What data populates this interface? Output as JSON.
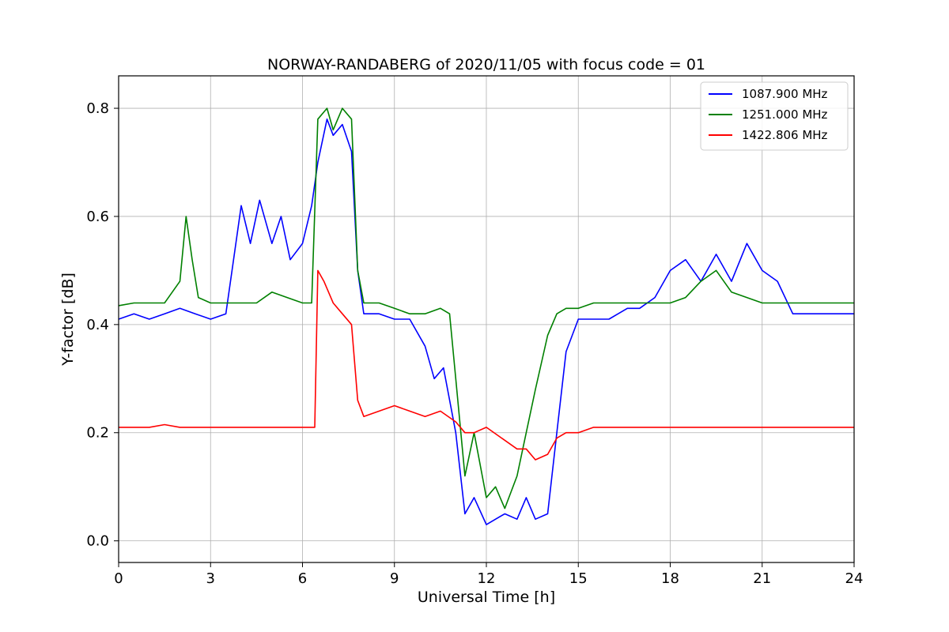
{
  "chart_data": {
    "type": "line",
    "title": "NORWAY-RANDABERG of 2020/11/05 with focus code = 01",
    "xlabel": "Universal Time [h]",
    "ylabel": "Y-factor [dB]",
    "xlim": [
      0,
      24
    ],
    "ylim": [
      -0.04,
      0.86
    ],
    "xticks": [
      0,
      3,
      6,
      9,
      12,
      15,
      18,
      21,
      24
    ],
    "xtick_labels": [
      "0",
      "3",
      "6",
      "9",
      "12",
      "15",
      "18",
      "21",
      "24"
    ],
    "yticks": [
      0.0,
      0.2,
      0.4,
      0.6,
      0.8
    ],
    "ytick_labels": [
      "0.0",
      "0.2",
      "0.4",
      "0.6",
      "0.8"
    ],
    "grid": true,
    "legend_position": "top-right",
    "series": [
      {
        "name": "1087.900 MHz",
        "color": "#0000ff",
        "x": [
          0,
          0.5,
          1.0,
          1.5,
          2.0,
          2.5,
          3.0,
          3.5,
          3.7,
          4.0,
          4.3,
          4.6,
          5.0,
          5.3,
          5.6,
          6.0,
          6.3,
          6.5,
          6.8,
          7.0,
          7.3,
          7.6,
          7.8,
          8.0,
          8.5,
          9.0,
          9.5,
          10.0,
          10.3,
          10.6,
          11.0,
          11.3,
          11.6,
          12.0,
          12.3,
          12.6,
          13.0,
          13.3,
          13.6,
          14.0,
          14.3,
          14.6,
          15.0,
          15.5,
          16.0,
          16.3,
          16.6,
          17.0,
          17.5,
          18.0,
          18.5,
          19.0,
          19.5,
          20.0,
          20.5,
          21.0,
          21.5,
          22.0,
          22.5,
          23.0,
          23.5,
          24.0
        ],
        "y": [
          0.41,
          0.42,
          0.41,
          0.42,
          0.43,
          0.42,
          0.41,
          0.42,
          0.5,
          0.62,
          0.55,
          0.63,
          0.55,
          0.6,
          0.52,
          0.55,
          0.62,
          0.7,
          0.78,
          0.75,
          0.77,
          0.72,
          0.5,
          0.42,
          0.42,
          0.41,
          0.41,
          0.36,
          0.3,
          0.32,
          0.2,
          0.05,
          0.08,
          0.03,
          0.04,
          0.05,
          0.04,
          0.08,
          0.04,
          0.05,
          0.2,
          0.35,
          0.41,
          0.41,
          0.41,
          0.42,
          0.43,
          0.43,
          0.45,
          0.5,
          0.52,
          0.48,
          0.53,
          0.48,
          0.55,
          0.5,
          0.48,
          0.42,
          0.42,
          0.42,
          0.42,
          0.42
        ]
      },
      {
        "name": "1251.000 MHz",
        "color": "#008000",
        "x": [
          0,
          0.5,
          1.0,
          1.5,
          2.0,
          2.2,
          2.4,
          2.6,
          3.0,
          3.5,
          4.0,
          4.5,
          5.0,
          5.5,
          6.0,
          6.3,
          6.5,
          6.8,
          7.0,
          7.3,
          7.6,
          7.8,
          8.0,
          8.5,
          9.0,
          9.5,
          10.0,
          10.5,
          10.8,
          11.0,
          11.3,
          11.6,
          12.0,
          12.3,
          12.6,
          13.0,
          13.3,
          13.6,
          14.0,
          14.3,
          14.6,
          15.0,
          15.5,
          16.0,
          16.5,
          17.0,
          17.5,
          18.0,
          18.5,
          19.0,
          19.5,
          20.0,
          20.5,
          21.0,
          21.5,
          22.0,
          22.5,
          23.0,
          23.5,
          24.0
        ],
        "y": [
          0.435,
          0.44,
          0.44,
          0.44,
          0.48,
          0.6,
          0.52,
          0.45,
          0.44,
          0.44,
          0.44,
          0.44,
          0.46,
          0.45,
          0.44,
          0.44,
          0.78,
          0.8,
          0.76,
          0.8,
          0.78,
          0.5,
          0.44,
          0.44,
          0.43,
          0.42,
          0.42,
          0.43,
          0.42,
          0.3,
          0.12,
          0.2,
          0.08,
          0.1,
          0.06,
          0.12,
          0.2,
          0.28,
          0.38,
          0.42,
          0.43,
          0.43,
          0.44,
          0.44,
          0.44,
          0.44,
          0.44,
          0.44,
          0.45,
          0.48,
          0.5,
          0.46,
          0.45,
          0.44,
          0.44,
          0.44,
          0.44,
          0.44,
          0.44,
          0.44
        ]
      },
      {
        "name": "1422.806 MHz",
        "color": "#ff0000",
        "x": [
          0,
          0.5,
          1.0,
          1.5,
          2.0,
          2.5,
          3.0,
          3.5,
          4.0,
          4.5,
          5.0,
          5.5,
          6.0,
          6.4,
          6.5,
          6.7,
          7.0,
          7.3,
          7.6,
          7.8,
          8.0,
          8.5,
          9.0,
          9.5,
          10.0,
          10.5,
          11.0,
          11.3,
          11.6,
          12.0,
          12.5,
          13.0,
          13.3,
          13.6,
          14.0,
          14.3,
          14.6,
          15.0,
          15.5,
          16.0,
          16.5,
          17.0,
          17.5,
          18.0,
          18.5,
          19.0,
          19.5,
          20.0,
          20.5,
          21.0,
          21.5,
          22.0,
          22.5,
          23.0,
          23.5,
          24.0
        ],
        "y": [
          0.21,
          0.21,
          0.21,
          0.215,
          0.21,
          0.21,
          0.21,
          0.21,
          0.21,
          0.21,
          0.21,
          0.21,
          0.21,
          0.21,
          0.5,
          0.48,
          0.44,
          0.42,
          0.4,
          0.26,
          0.23,
          0.24,
          0.25,
          0.24,
          0.23,
          0.24,
          0.22,
          0.2,
          0.2,
          0.21,
          0.19,
          0.17,
          0.17,
          0.15,
          0.16,
          0.19,
          0.2,
          0.2,
          0.21,
          0.21,
          0.21,
          0.21,
          0.21,
          0.21,
          0.21,
          0.21,
          0.21,
          0.21,
          0.21,
          0.21,
          0.21,
          0.21,
          0.21,
          0.21,
          0.21,
          0.21
        ]
      }
    ]
  }
}
